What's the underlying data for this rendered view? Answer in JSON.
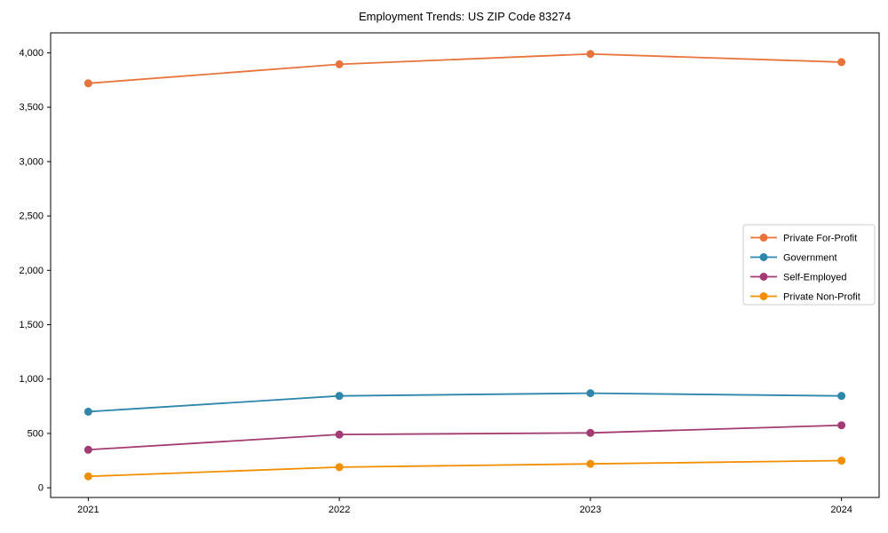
{
  "chart_data": {
    "type": "line",
    "title": "Employment Trends: US ZIP Code 83274",
    "xlabel": "",
    "ylabel": "",
    "x": [
      2021,
      2022,
      2023,
      2024
    ],
    "x_tick_labels": [
      "2021",
      "2022",
      "2023",
      "2024"
    ],
    "series": [
      {
        "name": "Private For-Profit",
        "color": "#E8743B",
        "values": [
          3720,
          3895,
          3990,
          3915
        ]
      },
      {
        "name": "Government",
        "color": "#2E86AB",
        "values": [
          700,
          845,
          870,
          845
        ]
      },
      {
        "name": "Self-Employed",
        "color": "#A23B72",
        "values": [
          350,
          490,
          505,
          575
        ]
      },
      {
        "name": "Private Non-Profit",
        "color": "#F18F01",
        "values": [
          105,
          190,
          220,
          250
        ]
      }
    ],
    "y_ticks": [
      0,
      500,
      1000,
      1500,
      2000,
      2500,
      3000,
      3500,
      4000
    ],
    "y_tick_labels": [
      "0",
      "500",
      "1,000",
      "1,500",
      "2,000",
      "2,500",
      "3,000",
      "3,500",
      "4,000"
    ],
    "xlim": [
      2020.85,
      2024.15
    ],
    "ylim": [
      -89,
      4184
    ],
    "grid": false,
    "legend_position": "center right",
    "marker": "circle",
    "axis_color": "#000000",
    "legend_border_color": "#cccccc",
    "legend_background": "#ffffff"
  }
}
